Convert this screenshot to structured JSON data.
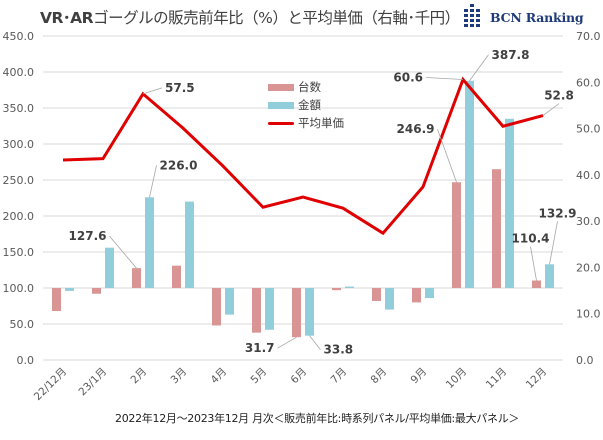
{
  "header": {
    "title_bold": "VR･AR",
    "title_rest": "ゴーグルの販売前年比（%）と平均単価（右軸･千円）",
    "brand": "BCN Ranking"
  },
  "footer": {
    "note": "2022年12月～2023年12月 月次＜販売前年比:時系列パネル/平均単価:最大パネル＞"
  },
  "legend": {
    "items": [
      {
        "label": "台数",
        "color": "#d99594"
      },
      {
        "label": "金額",
        "color": "#92cddc"
      },
      {
        "label": "平均単価",
        "color": "#e00000"
      }
    ]
  },
  "chart_data": {
    "type": "bar",
    "title": "VR･ARゴーグルの販売前年比（%）と平均単価（右軸･千円）",
    "categories": [
      "22/12月",
      "23/1月",
      "2月",
      "3月",
      "4月",
      "5月",
      "6月",
      "7月",
      "8月",
      "9月",
      "10月",
      "11月",
      "12月"
    ],
    "baseline": 100,
    "series": [
      {
        "name": "台数",
        "type": "bar",
        "axis": "left",
        "color": "#d99594",
        "values": [
          68,
          92,
          127.6,
          131,
          48,
          38,
          31.7,
          97,
          82,
          80,
          246.9,
          265,
          110.4
        ]
      },
      {
        "name": "金額",
        "type": "bar",
        "axis": "left",
        "color": "#92cddc",
        "values": [
          96,
          156,
          226.0,
          220,
          63,
          42,
          33.8,
          102,
          70,
          86,
          387.8,
          335,
          132.9
        ]
      },
      {
        "name": "平均単価",
        "type": "line",
        "axis": "right",
        "color": "#e00000",
        "values": [
          43.2,
          43.5,
          57.5,
          50.1,
          41.9,
          33.0,
          35.2,
          32.8,
          27.4,
          37.4,
          60.6,
          50.5,
          52.8
        ]
      }
    ],
    "data_labels": [
      {
        "series": "台数",
        "category": "2月",
        "text": "127.6"
      },
      {
        "series": "金額",
        "category": "2月",
        "text": "226.0"
      },
      {
        "series": "平均単価",
        "category": "2月",
        "text": "57.5"
      },
      {
        "series": "台数",
        "category": "6月",
        "text": "31.7"
      },
      {
        "series": "金額",
        "category": "6月",
        "text": "33.8"
      },
      {
        "series": "台数",
        "category": "10月",
        "text": "246.9"
      },
      {
        "series": "金額",
        "category": "10月",
        "text": "387.8"
      },
      {
        "series": "平均単価",
        "category": "10月",
        "text": "60.6"
      },
      {
        "series": "平均単価",
        "category": "12月",
        "text": "52.8"
      },
      {
        "series": "台数",
        "category": "12月",
        "text": "110.4"
      },
      {
        "series": "金額",
        "category": "12月",
        "text": "132.9"
      }
    ],
    "y_left": {
      "min": 0,
      "max": 450,
      "step": 50,
      "ticks": [
        "0.0",
        "50.0",
        "100.0",
        "150.0",
        "200.0",
        "250.0",
        "300.0",
        "350.0",
        "400.0",
        "450.0"
      ]
    },
    "y_right": {
      "min": 0,
      "max": 70,
      "step": 10,
      "ticks": [
        "0.0",
        "10.0",
        "20.0",
        "30.0",
        "40.0",
        "50.0",
        "60.0",
        "70.0"
      ]
    },
    "xlabel": "",
    "ylabel": "",
    "grid": true,
    "legend_position": "top-center"
  }
}
